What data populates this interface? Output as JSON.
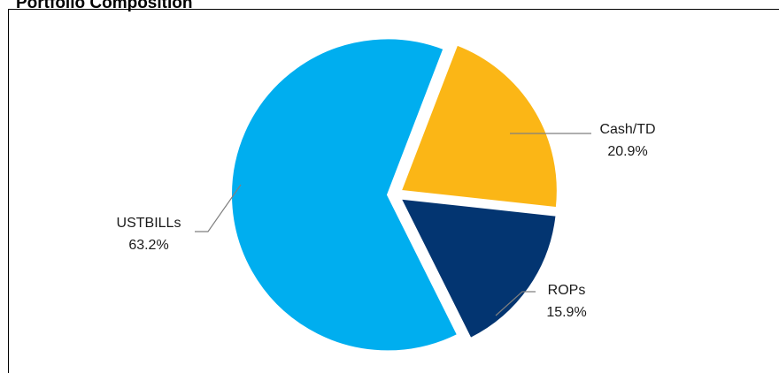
{
  "chart_data": {
    "type": "pie",
    "title": "Portfolio Composition",
    "slices": [
      {
        "label": "Cash/TD",
        "value": 20.9,
        "value_label": "20.9%",
        "color": "#FBB616"
      },
      {
        "label": "ROPs",
        "value": 15.9,
        "value_label": "15.9%",
        "color": "#033571"
      },
      {
        "label": "USTBILLs",
        "value": 63.2,
        "value_label": "63.2%",
        "color": "#00AEEF"
      }
    ],
    "exploded": true,
    "legend": "none (data labels with leader lines)"
  }
}
